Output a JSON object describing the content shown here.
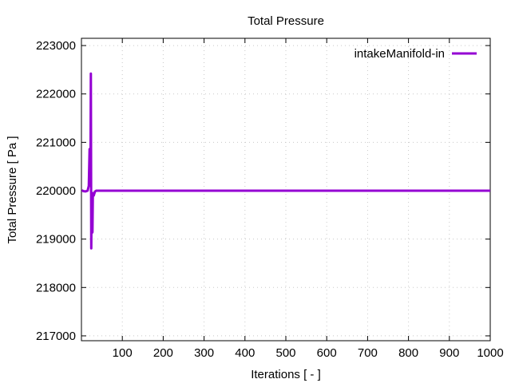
{
  "chart_data": {
    "type": "line",
    "title": "Total Pressure",
    "xlabel": "Iterations [ - ]",
    "ylabel": "Total Pressure [ Pa ]",
    "xlim": [
      0,
      1000
    ],
    "ylim": [
      216900,
      223150
    ],
    "xticks": [
      100,
      200,
      300,
      400,
      500,
      600,
      700,
      800,
      900,
      1000
    ],
    "yticks": [
      217000,
      218000,
      219000,
      220000,
      221000,
      222000,
      223000
    ],
    "grid": true,
    "legend": "top-right",
    "series": [
      {
        "name": "intakeManifold-in",
        "color": "#9400d3",
        "x": [
          1,
          5,
          10,
          15,
          18,
          20,
          22,
          23,
          24,
          25,
          27,
          28,
          30,
          33,
          36,
          100,
          1000
        ],
        "y": [
          220010,
          219990,
          219985,
          220000,
          220100,
          220860,
          220300,
          222420,
          218810,
          219900,
          219140,
          219950,
          219900,
          219980,
          220000,
          220000,
          220000
        ]
      }
    ]
  }
}
